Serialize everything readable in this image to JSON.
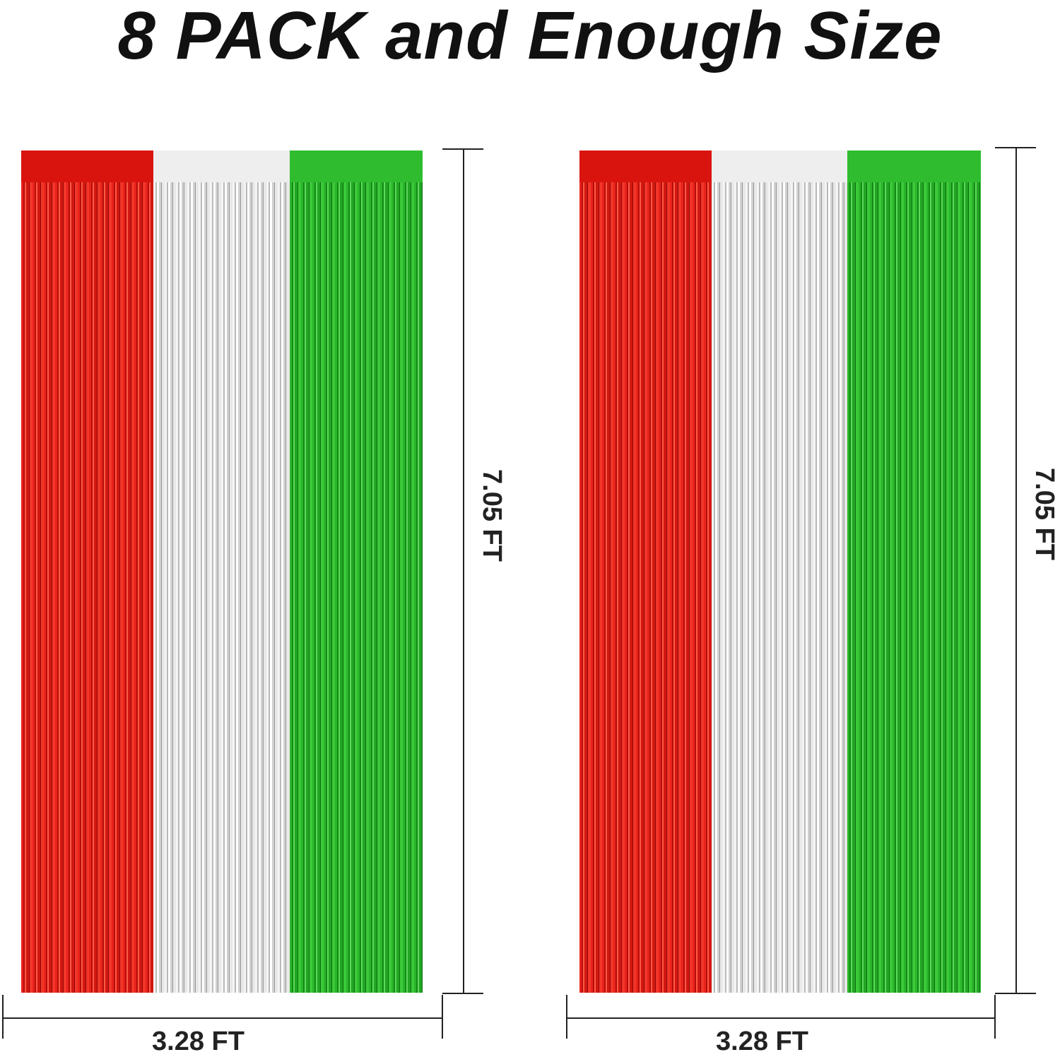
{
  "title": "8 PACK and Enough Size",
  "curtains": [
    {
      "height_label": "7.05 FT",
      "width_label": "3.28 FT",
      "colors": [
        "#d9140f",
        "#eeeeee",
        "#2fbd2f"
      ]
    },
    {
      "height_label": "7.05 FT",
      "width_label": "3.28 FT",
      "colors": [
        "#d9140f",
        "#eeeeee",
        "#2fbd2f"
      ]
    }
  ]
}
